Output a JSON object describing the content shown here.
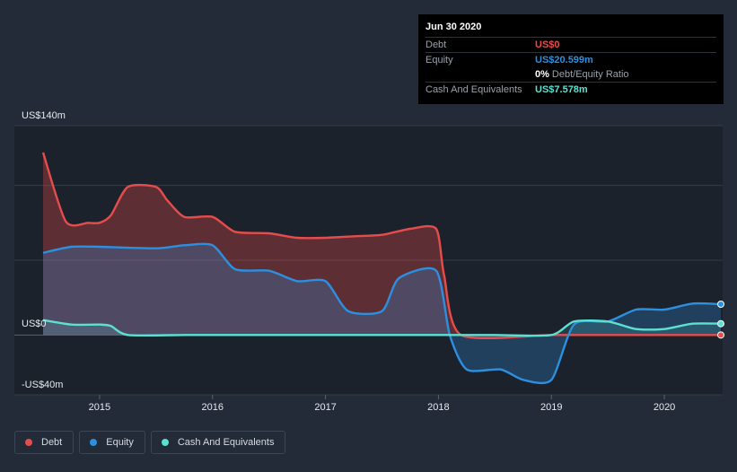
{
  "tooltip": {
    "date": "Jun 30 2020",
    "rows": [
      {
        "label": "Debt",
        "value": "US$0",
        "color": "#e64c4c"
      },
      {
        "label": "Equity",
        "value": "US$20.599m",
        "color": "#2d8fdf"
      },
      {
        "label": "",
        "value": "0%",
        "sub": "Debt/Equity Ratio",
        "color": "#ffffff"
      },
      {
        "label": "Cash And Equivalents",
        "value": "US$7.578m",
        "color": "#5ce0d2"
      }
    ]
  },
  "legend": [
    {
      "label": "Debt",
      "color": "#e64c4c"
    },
    {
      "label": "Equity",
      "color": "#2d8fdf"
    },
    {
      "label": "Cash And Equivalents",
      "color": "#5ce0d2"
    }
  ],
  "chart_data": {
    "type": "area",
    "y_axis_labels": [
      "US$140m",
      "US$0",
      "-US$40m"
    ],
    "ylim": [
      -40,
      140
    ],
    "xlim": [
      2014.5,
      2020.5
    ],
    "x_ticks": [
      2015,
      2016,
      2017,
      2018,
      2019,
      2020
    ],
    "x_tick_labels": [
      "2015",
      "2016",
      "2017",
      "2018",
      "2019",
      "2020"
    ],
    "grid": true,
    "legend_position": "bottom-left",
    "series": [
      {
        "name": "Debt",
        "color": "#e64c4c",
        "points": [
          [
            2014.5,
            122
          ],
          [
            2014.7,
            76
          ],
          [
            2014.9,
            75
          ],
          [
            2015.0,
            75
          ],
          [
            2015.1,
            80
          ],
          [
            2015.25,
            99
          ],
          [
            2015.5,
            99
          ],
          [
            2015.6,
            90
          ],
          [
            2015.75,
            79
          ],
          [
            2016.0,
            79
          ],
          [
            2016.2,
            69
          ],
          [
            2016.5,
            68
          ],
          [
            2016.75,
            65
          ],
          [
            2017.0,
            65
          ],
          [
            2017.25,
            66
          ],
          [
            2017.5,
            67
          ],
          [
            2017.75,
            71
          ],
          [
            2017.98,
            71
          ],
          [
            2018.05,
            40
          ],
          [
            2018.2,
            0
          ],
          [
            2019.0,
            0
          ],
          [
            2019.5,
            0
          ],
          [
            2020.0,
            0
          ],
          [
            2020.5,
            0
          ]
        ]
      },
      {
        "name": "Equity",
        "color": "#2d8fdf",
        "points": [
          [
            2014.5,
            55
          ],
          [
            2014.75,
            59
          ],
          [
            2015.0,
            59
          ],
          [
            2015.5,
            58
          ],
          [
            2015.75,
            60
          ],
          [
            2016.0,
            60
          ],
          [
            2016.2,
            44
          ],
          [
            2016.5,
            43
          ],
          [
            2016.75,
            36
          ],
          [
            2017.0,
            36
          ],
          [
            2017.2,
            16
          ],
          [
            2017.5,
            16
          ],
          [
            2017.65,
            38
          ],
          [
            2017.98,
            43
          ],
          [
            2018.1,
            0
          ],
          [
            2018.25,
            -23
          ],
          [
            2018.55,
            -23
          ],
          [
            2018.75,
            -30
          ],
          [
            2019.0,
            -30
          ],
          [
            2019.2,
            7
          ],
          [
            2019.5,
            9
          ],
          [
            2019.75,
            17
          ],
          [
            2020.0,
            17
          ],
          [
            2020.25,
            21
          ],
          [
            2020.5,
            20.599
          ]
        ]
      },
      {
        "name": "Cash And Equivalents",
        "color": "#5ce0d2",
        "points": [
          [
            2014.5,
            10
          ],
          [
            2014.75,
            7
          ],
          [
            2015.0,
            7
          ],
          [
            2015.1,
            6
          ],
          [
            2015.25,
            0
          ],
          [
            2015.75,
            0
          ],
          [
            2016.0,
            0
          ],
          [
            2017.0,
            0
          ],
          [
            2018.0,
            0
          ],
          [
            2018.5,
            0
          ],
          [
            2019.0,
            0
          ],
          [
            2019.2,
            9
          ],
          [
            2019.5,
            9
          ],
          [
            2019.75,
            4
          ],
          [
            2020.0,
            4
          ],
          [
            2020.25,
            7.578
          ],
          [
            2020.5,
            7.578
          ]
        ]
      }
    ]
  }
}
